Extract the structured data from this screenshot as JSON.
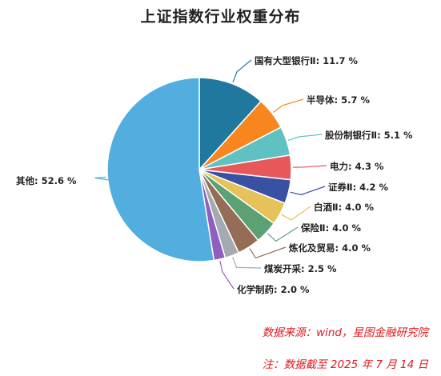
{
  "chart_data": {
    "type": "pie",
    "title": "上证指数行业权重分布",
    "unit": "%",
    "slices": [
      {
        "label": "国有大型银行Ⅱ",
        "value": 11.7,
        "color": "#21789f"
      },
      {
        "label": "半导体",
        "value": 5.7,
        "color": "#f7861e"
      },
      {
        "label": "股份制银行Ⅱ",
        "value": 5.1,
        "color": "#5fc1c2"
      },
      {
        "label": "电力",
        "value": 4.3,
        "color": "#e6585a"
      },
      {
        "label": "证券Ⅱ",
        "value": 4.2,
        "color": "#3a50a2"
      },
      {
        "label": "白酒Ⅱ",
        "value": 4.0,
        "color": "#e6c25a"
      },
      {
        "label": "保险Ⅱ",
        "value": 4.0,
        "color": "#5ca174"
      },
      {
        "label": "炼化及贸易",
        "value": 4.0,
        "color": "#956c56"
      },
      {
        "label": "煤炭开采",
        "value": 2.5,
        "color": "#a3aab2"
      },
      {
        "label": "化学制药",
        "value": 2.0,
        "color": "#8e5fbf"
      },
      {
        "label": "其他",
        "value": 52.6,
        "color": "#53aee0"
      }
    ]
  },
  "notes": {
    "source": "数据来源：wind，星图金融研究院",
    "date": "注：数据截至 2025 年 7 月 14 日"
  }
}
